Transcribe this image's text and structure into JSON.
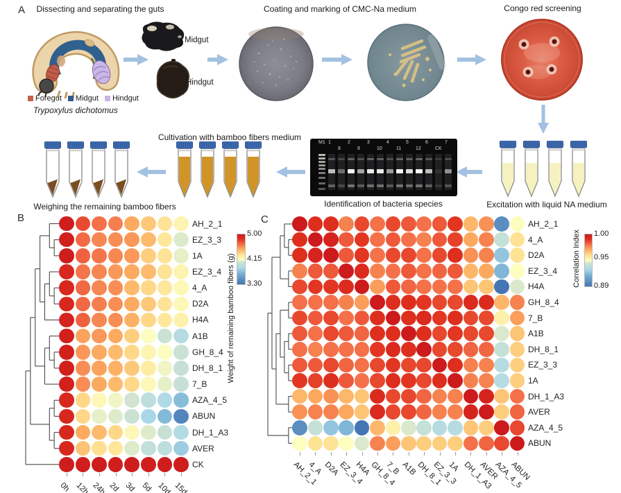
{
  "panel_a": {
    "label": "A",
    "dissect_title": "Dissecting and separating the guts",
    "coating_title": "Coating and marking of CMC-Na medium",
    "congo_title": "Congo red screening",
    "excitation_caption": "Excitation with liquid NA medium",
    "identification_caption": "Identification of bacteria species",
    "cultivation_title": "Cultivation with bamboo fibers medium",
    "weighing_caption": "Weighing the remaining bamboo fibers",
    "species": "Trypoxylus dichotomus",
    "gut_photo_labels": {
      "midgut": "Midgut",
      "hindgut": "Hindgut"
    },
    "legend": [
      {
        "label": "Foregut",
        "color": "#c4604d"
      },
      {
        "label": "Midgut",
        "color": "#2e5c8c"
      },
      {
        "label": "Hindgut",
        "color": "#c9b4e6"
      }
    ],
    "arrow_color": "#a3c1e0",
    "gel": {
      "lanes": [
        {
          "label": "M1",
          "row": 1,
          "ladder": true,
          "b": 0
        },
        {
          "label": "1",
          "row": 1,
          "b": 0.7
        },
        {
          "label": "8",
          "row": 2,
          "b": 0.35
        },
        {
          "label": "2",
          "row": 1,
          "b": 0.95
        },
        {
          "label": "9",
          "row": 2,
          "b": 0.6
        },
        {
          "label": "3",
          "row": 1,
          "b": 0.9
        },
        {
          "label": "10",
          "row": 2,
          "b": 0.9
        },
        {
          "label": "4",
          "row": 1,
          "b": 0.55
        },
        {
          "label": "11",
          "row": 2,
          "b": 0.95
        },
        {
          "label": "5",
          "row": 1,
          "b": 0.85
        },
        {
          "label": "12",
          "row": 2,
          "b": 0.95
        },
        {
          "label": "6",
          "row": 1,
          "b": 0.7
        },
        {
          "label": "CK",
          "row": 2,
          "b": 0.08
        },
        {
          "label": "7",
          "row": 1,
          "b": 0.5
        }
      ]
    }
  },
  "chart_data": [
    {
      "panel": "B",
      "type": "heatmap",
      "subtype": "dot-matrix heatmap with row dendrogram",
      "rows": [
        "AH_2_1",
        "EZ_3_3",
        "1A",
        "EZ_3_4",
        "4_A",
        "D2A",
        "H4A",
        "A1B",
        "GH_8_4",
        "DH_8_1",
        "7_B",
        "AZA_4_5",
        "ABUN",
        "DH_1_A3",
        "AVER",
        "CK"
      ],
      "columns": [
        "0h",
        "12h",
        "24h",
        "2d",
        "3d",
        "5d",
        "10d",
        "15d"
      ],
      "values": [
        [
          4.97,
          4.76,
          4.66,
          4.62,
          4.5,
          4.4,
          4.3,
          4.2
        ],
        [
          4.95,
          4.68,
          4.6,
          4.58,
          4.55,
          4.45,
          4.28,
          4.08
        ],
        [
          4.98,
          4.7,
          4.65,
          4.6,
          4.55,
          4.38,
          4.3,
          4.1
        ],
        [
          4.9,
          4.65,
          4.6,
          4.55,
          4.5,
          4.45,
          4.3,
          4.2
        ],
        [
          4.9,
          4.68,
          4.6,
          4.58,
          4.45,
          4.35,
          4.28,
          4.18
        ],
        [
          4.9,
          4.68,
          4.62,
          4.58,
          4.5,
          4.4,
          4.3,
          4.18
        ],
        [
          4.92,
          4.7,
          4.6,
          4.58,
          4.48,
          4.35,
          4.28,
          4.22
        ],
        [
          4.95,
          4.52,
          4.55,
          4.5,
          4.38,
          4.15,
          4.02,
          3.92
        ],
        [
          4.95,
          4.55,
          4.5,
          4.45,
          4.35,
          4.2,
          4.15,
          4.02
        ],
        [
          4.95,
          4.58,
          4.52,
          4.48,
          4.4,
          4.25,
          4.12,
          4.0
        ],
        [
          4.95,
          4.58,
          4.5,
          4.45,
          4.35,
          4.18,
          4.1,
          4.0
        ],
        [
          4.9,
          4.35,
          4.18,
          4.12,
          4.05,
          3.95,
          3.88,
          3.72
        ],
        [
          4.9,
          4.35,
          4.1,
          4.08,
          4.02,
          3.85,
          3.7,
          3.4
        ],
        [
          4.9,
          4.5,
          4.45,
          4.35,
          4.18,
          4.08,
          4.0,
          3.9
        ],
        [
          4.9,
          4.42,
          4.32,
          4.28,
          4.08,
          3.98,
          3.95,
          3.8
        ],
        [
          4.98,
          4.97,
          4.98,
          4.97,
          4.98,
          4.97,
          4.98,
          4.98
        ]
      ],
      "dendrogram": [
        [
          [
            [
              [
                "AH_2_1",
                [
                  "EZ_3_3",
                  "1A"
                ]
              ],
              [
                [
                  "EZ_3_4",
                  [
                    "4_A",
                    "D2A"
                  ]
                ],
                "H4A"
              ]
            ],
            [
              [
                "A1B",
                [
                  "GH_8_4",
                  "DH_8_1"
                ]
              ],
              "7_B"
            ]
          ],
          [
            [
              "AZA_4_5",
              "ABUN"
            ],
            [
              "DH_1_A3",
              "AVER"
            ]
          ]
        ],
        "CK"
      ],
      "colorbar": {
        "label": "Weight of remaining bamboo fibers (g)",
        "ticks": [
          {
            "text": "5.00",
            "value": 5.0
          },
          {
            "text": "4.15",
            "value": 4.15
          },
          {
            "text": "3.30",
            "value": 3.3
          }
        ],
        "vmin": 3.3,
        "vmax": 5.0
      },
      "colormap_stops": [
        [
          0,
          "#4575b4"
        ],
        [
          0.2,
          "#74add1"
        ],
        [
          0.33,
          "#abd9e9"
        ],
        [
          0.44,
          "#cfe3d0"
        ],
        [
          0.5,
          "#fdfdbf"
        ],
        [
          0.6,
          "#fee090"
        ],
        [
          0.7,
          "#fdae61"
        ],
        [
          0.8,
          "#f4714a"
        ],
        [
          0.9,
          "#e0301e"
        ],
        [
          1,
          "#cc1a1d"
        ]
      ]
    },
    {
      "panel": "C",
      "type": "heatmap",
      "subtype": "correlation dot-matrix with row dendrogram",
      "rows": [
        "AH_2_1",
        "4_A",
        "D2A",
        "EZ_3_4",
        "H4A",
        "GH_8_4",
        "7_B",
        "A1B",
        "DH_8_1",
        "EZ_3_3",
        "1A",
        "DH_1_A3",
        "AVER",
        "AZA_4_5",
        "ABUN"
      ],
      "columns": [
        "AH_2_1",
        "4_A",
        "D2A",
        "EZ_3_4",
        "H4A",
        "GH_8_4",
        "7_B",
        "A1B",
        "DH_8_1",
        "EZ_3_3",
        "1A",
        "DH_1_A3",
        "AVER",
        "AZA_4_5",
        "ABUN"
      ],
      "values": [
        [
          1.0,
          0.99,
          0.99,
          0.975,
          0.985,
          0.978,
          0.985,
          0.982,
          0.978,
          0.982,
          0.988,
          0.965,
          0.972,
          0.9,
          0.945
        ],
        [
          0.99,
          1.0,
          0.995,
          0.982,
          0.988,
          0.978,
          0.982,
          0.978,
          0.975,
          0.982,
          0.986,
          0.968,
          0.975,
          0.935,
          0.955
        ],
        [
          0.99,
          0.995,
          1.0,
          0.982,
          0.988,
          0.978,
          0.985,
          0.985,
          0.978,
          0.985,
          0.99,
          0.972,
          0.975,
          0.92,
          0.955
        ],
        [
          0.975,
          0.982,
          0.982,
          1.0,
          0.992,
          0.975,
          0.978,
          0.982,
          0.978,
          0.98,
          0.982,
          0.965,
          0.968,
          0.915,
          0.945
        ],
        [
          0.985,
          0.988,
          0.988,
          0.992,
          1.0,
          0.97,
          0.982,
          0.98,
          0.978,
          0.978,
          0.978,
          0.962,
          0.962,
          0.89,
          0.94
        ],
        [
          0.978,
          0.978,
          0.978,
          0.975,
          0.97,
          1.0,
          0.99,
          0.99,
          0.988,
          0.985,
          0.985,
          0.992,
          0.992,
          0.965,
          0.975
        ],
        [
          0.985,
          0.982,
          0.985,
          0.978,
          0.982,
          0.99,
          1.0,
          0.99,
          0.992,
          0.988,
          0.99,
          0.985,
          0.985,
          0.95,
          0.97
        ],
        [
          0.982,
          0.978,
          0.985,
          0.982,
          0.98,
          0.99,
          0.99,
          1.0,
          0.99,
          0.985,
          0.988,
          0.985,
          0.985,
          0.94,
          0.962
        ],
        [
          0.978,
          0.975,
          0.978,
          0.978,
          0.978,
          0.988,
          0.992,
          0.99,
          1.0,
          0.985,
          0.985,
          0.98,
          0.98,
          0.935,
          0.96
        ],
        [
          0.982,
          0.982,
          0.985,
          0.98,
          0.978,
          0.985,
          0.988,
          0.985,
          0.985,
          1.0,
          0.99,
          0.975,
          0.975,
          0.93,
          0.96
        ],
        [
          0.988,
          0.986,
          0.99,
          0.982,
          0.978,
          0.985,
          0.99,
          0.988,
          0.985,
          0.99,
          1.0,
          0.975,
          0.975,
          0.93,
          0.96
        ],
        [
          0.965,
          0.968,
          0.972,
          0.965,
          0.962,
          0.992,
          0.985,
          0.985,
          0.98,
          0.975,
          0.975,
          1.0,
          0.995,
          0.962,
          0.978
        ],
        [
          0.972,
          0.975,
          0.975,
          0.968,
          0.962,
          0.992,
          0.985,
          0.985,
          0.98,
          0.975,
          0.975,
          0.995,
          1.0,
          0.96,
          0.98
        ],
        [
          0.9,
          0.935,
          0.92,
          0.915,
          0.89,
          0.965,
          0.95,
          0.94,
          0.935,
          0.93,
          0.93,
          0.962,
          0.96,
          1.0,
          0.985
        ],
        [
          0.945,
          0.955,
          0.955,
          0.945,
          0.94,
          0.975,
          0.97,
          0.962,
          0.96,
          0.96,
          0.96,
          0.978,
          0.98,
          0.985,
          1.0
        ]
      ],
      "dendrogram": [
        [
          [
            [
              "AH_2_1",
              [
                "4_A",
                "D2A"
              ]
            ],
            [
              "EZ_3_4",
              "H4A"
            ]
          ],
          [
            [
              [
                "GH_8_4",
                "7_B"
              ],
              [
                [
                  "A1B",
                  "DH_8_1"
                ],
                [
                  "EZ_3_3",
                  "1A"
                ]
              ]
            ],
            [
              "DH_1_A3",
              "AVER"
            ]
          ]
        ],
        [
          "AZA_4_5",
          "ABUN"
        ]
      ],
      "colorbar": {
        "label": "Correlation Index",
        "ticks": [
          {
            "text": "1.00",
            "value": 1.0
          },
          {
            "text": "0.95",
            "value": 0.95
          },
          {
            "text": "0.89",
            "value": 0.89
          }
        ],
        "vmin": 0.89,
        "vmax": 1.0
      },
      "colormap_stops": [
        [
          0,
          "#4575b4"
        ],
        [
          0.2,
          "#74add1"
        ],
        [
          0.33,
          "#abd9e9"
        ],
        [
          0.44,
          "#cfe3d0"
        ],
        [
          0.5,
          "#fdfdbf"
        ],
        [
          0.6,
          "#fee090"
        ],
        [
          0.7,
          "#fdae61"
        ],
        [
          0.8,
          "#f4714a"
        ],
        [
          0.9,
          "#e0301e"
        ],
        [
          1,
          "#cc1a1d"
        ]
      ]
    }
  ],
  "panel_b_letter": "B",
  "panel_c_letter": "C"
}
